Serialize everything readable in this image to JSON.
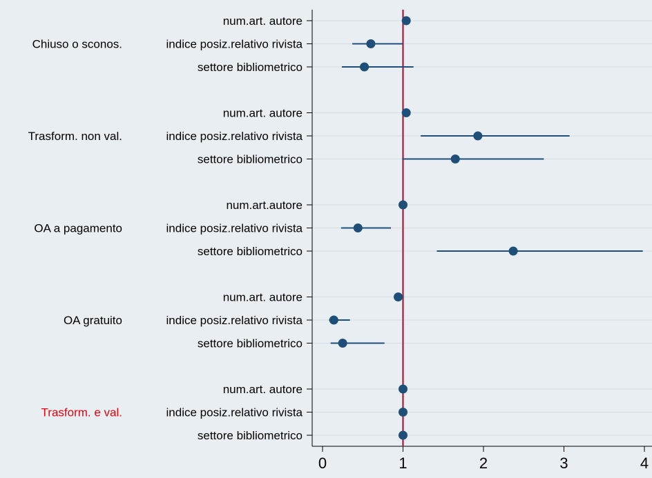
{
  "chart_data": {
    "type": "scatter",
    "subtype": "coefficient plot with confidence intervals",
    "title": "",
    "xlabel": "",
    "ylabel": "",
    "xlim": [
      0,
      4
    ],
    "x_ticks": [
      "0",
      "1",
      "2",
      "3",
      "4"
    ],
    "x_tick_values": [
      0,
      1,
      2,
      3,
      4
    ],
    "reference_line": {
      "x": 1,
      "color": "#a0203c"
    },
    "grid": "horizontal",
    "colors": {
      "marker": "#1f4e79",
      "ci_line": "#1f4e79",
      "grid": "#d3dde3",
      "background": "#e8eef2",
      "base_group_label": "#e8000b",
      "group_label": "#000000"
    },
    "groups": [
      {
        "name": "Chiuso o sconos.",
        "label_color": "#000000",
        "rows": [
          {
            "label": "num.art. autore",
            "estimate": 1.04,
            "ci_low": 1.02,
            "ci_high": 1.06
          },
          {
            "label": "indice posiz.relativo rivista",
            "estimate": 0.6,
            "ci_low": 0.37,
            "ci_high": 1.0
          },
          {
            "label": "settore bibliometrico",
            "estimate": 0.52,
            "ci_low": 0.24,
            "ci_high": 1.13
          }
        ]
      },
      {
        "name": "Trasform. non val.",
        "label_color": "#000000",
        "rows": [
          {
            "label": "num.art. autore",
            "estimate": 1.04,
            "ci_low": 1.02,
            "ci_high": 1.06
          },
          {
            "label": "indice posiz.relativo rivista",
            "estimate": 1.93,
            "ci_low": 1.22,
            "ci_high": 3.07
          },
          {
            "label": "settore bibliometrico",
            "estimate": 1.65,
            "ci_low": 0.99,
            "ci_high": 2.75
          }
        ]
      },
      {
        "name": "OA a pagamento",
        "label_color": "#000000",
        "rows": [
          {
            "label": "num.art.autore",
            "estimate": 1.0,
            "ci_low": 0.98,
            "ci_high": 1.02
          },
          {
            "label": "indice posiz.relativo rivista",
            "estimate": 0.44,
            "ci_low": 0.23,
            "ci_high": 0.85
          },
          {
            "label": "settore bibliometrico",
            "estimate": 2.37,
            "ci_low": 1.42,
            "ci_high": 3.98
          }
        ]
      },
      {
        "name": "OA gratuito",
        "label_color": "#000000",
        "rows": [
          {
            "label": "num.art. autore",
            "estimate": 0.94,
            "ci_low": 0.92,
            "ci_high": 0.96
          },
          {
            "label": "indice posiz.relativo rivista",
            "estimate": 0.14,
            "ci_low": 0.08,
            "ci_high": 0.34
          },
          {
            "label": "settore bibliometrico",
            "estimate": 0.25,
            "ci_low": 0.1,
            "ci_high": 0.77
          }
        ]
      },
      {
        "name": "Trasform. e val.",
        "label_color": "#e8000b",
        "rows": [
          {
            "label": "num.art. autore",
            "estimate": 1.0,
            "ci_low": 1.0,
            "ci_high": 1.0
          },
          {
            "label": "indice posiz.relativo rivista",
            "estimate": 1.0,
            "ci_low": 1.0,
            "ci_high": 1.0
          },
          {
            "label": "settore bibliometrico",
            "estimate": 1.0,
            "ci_low": 1.0,
            "ci_high": 1.0
          }
        ]
      }
    ]
  }
}
